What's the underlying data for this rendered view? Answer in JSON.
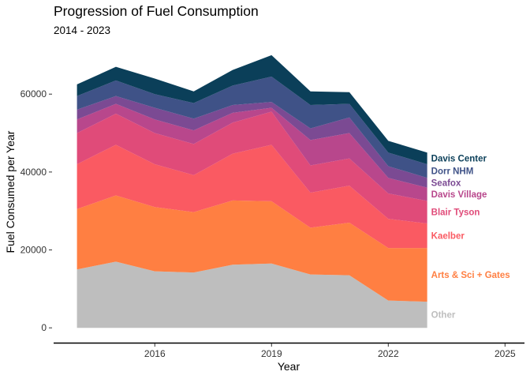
{
  "chart_data": {
    "type": "area",
    "stacked": true,
    "title": "Progression of Fuel Consumption",
    "subtitle": "2014 - 2023",
    "xlabel": "Year",
    "ylabel": "Fuel Consumed per Year",
    "x": [
      2014,
      2015,
      2016,
      2017,
      2018,
      2019,
      2020,
      2021,
      2022,
      2023
    ],
    "xlim": [
      2013.4,
      2025.5
    ],
    "ylim": [
      -3000,
      72000
    ],
    "xticks": [
      2016,
      2019,
      2022,
      2025
    ],
    "yticks": [
      0,
      20000,
      40000,
      60000
    ],
    "xtick_labels": [
      "2016",
      "2019",
      "2022",
      "2025"
    ],
    "ytick_labels": [
      "0",
      "20000",
      "40000",
      "60000"
    ],
    "grid": false,
    "legend": "direct labels at right end of each area",
    "series": [
      {
        "name": "Other",
        "color": "#bebebe",
        "values": [
          15000,
          17000,
          14500,
          14200,
          16200,
          16500,
          13700,
          13500,
          7000,
          6700
        ]
      },
      {
        "name": "Arts & Sci + Gates",
        "color": "#ff7f42",
        "values": [
          15500,
          17000,
          16500,
          15500,
          16500,
          16000,
          12000,
          13500,
          13500,
          13800
        ]
      },
      {
        "name": "Kaelber",
        "color": "#fa5a62",
        "values": [
          11500,
          13000,
          11000,
          9500,
          12000,
          14500,
          9000,
          9500,
          7500,
          6300
        ]
      },
      {
        "name": "Blair Tyson",
        "color": "#e04b79",
        "values": [
          8000,
          8000,
          8000,
          8000,
          8000,
          8500,
          7000,
          7000,
          6500,
          5800
        ]
      },
      {
        "name": "Davis Village",
        "color": "#b8478c",
        "values": [
          3500,
          2500,
          3500,
          3500,
          2500,
          1000,
          6500,
          6500,
          4000,
          3400
        ]
      },
      {
        "name": "Seafox",
        "color": "#7b4a93",
        "values": [
          2500,
          2000,
          3000,
          3000,
          2000,
          1500,
          3000,
          4000,
          3000,
          2500
        ]
      },
      {
        "name": "Dorr NHM",
        "color": "#3f5287",
        "values": [
          3500,
          4000,
          3500,
          4000,
          5000,
          6500,
          6000,
          3500,
          3500,
          3500
        ]
      },
      {
        "name": "Davis Center",
        "color": "#0b3f59",
        "values": [
          3000,
          3500,
          4000,
          3000,
          4000,
          5500,
          3500,
          3000,
          3000,
          3000
        ]
      }
    ]
  }
}
